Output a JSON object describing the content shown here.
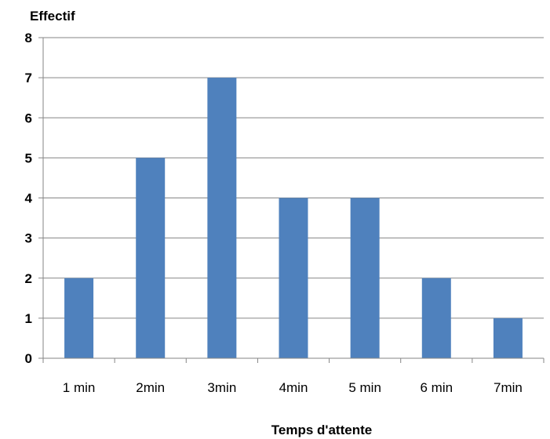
{
  "chart_data": {
    "type": "bar",
    "categories": [
      "1 min",
      "2min",
      "3min",
      "4min",
      "5 min",
      "6 min",
      "7min"
    ],
    "values": [
      2,
      5,
      7,
      4,
      4,
      2,
      1
    ],
    "title": "",
    "xlabel": "Temps d'attente",
    "ylabel": "Effectif",
    "ylim": [
      0,
      8
    ],
    "yticks": [
      "0",
      "1",
      "2",
      "3",
      "4",
      "5",
      "6",
      "7",
      "8"
    ],
    "grid": true,
    "legend": "none",
    "colors": {
      "bar": "#4f81bd",
      "grid": "#868686",
      "axis": "#868686"
    }
  }
}
